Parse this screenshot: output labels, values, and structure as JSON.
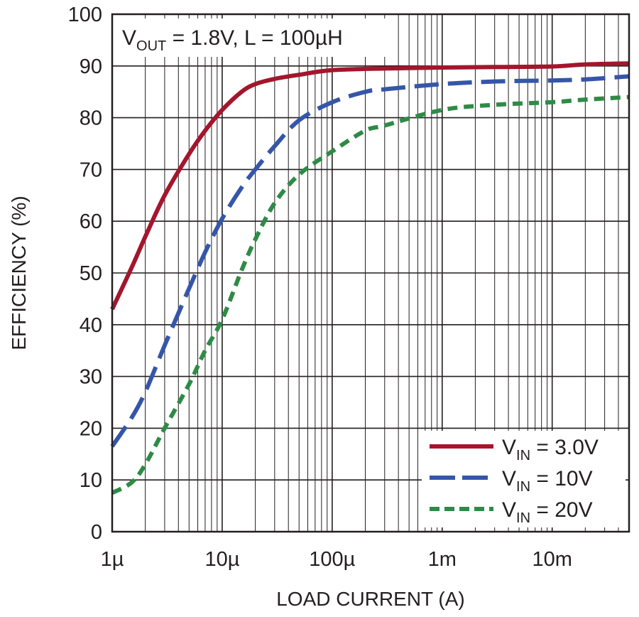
{
  "chart_data": {
    "type": "line",
    "title": "",
    "annotation": {
      "v": "V",
      "sub": "OUT",
      "rest": " = 1.8V, L = 100µH"
    },
    "xlabel": "LOAD CURRENT (A)",
    "ylabel": "EFFICIENCY (%)",
    "x_scale": "log",
    "xlim": [
      1e-06,
      0.05
    ],
    "ylim": [
      0,
      100
    ],
    "x_ticks": [
      {
        "value": 1e-06,
        "label": "1µ"
      },
      {
        "value": 1e-05,
        "label": "10µ"
      },
      {
        "value": 0.0001,
        "label": "100µ"
      },
      {
        "value": 0.001,
        "label": "1m"
      },
      {
        "value": 0.01,
        "label": "10m"
      }
    ],
    "y_ticks": [
      0,
      10,
      20,
      30,
      40,
      50,
      60,
      70,
      80,
      90,
      100
    ],
    "grid": true,
    "legend_position": "bottom-right",
    "series": [
      {
        "name": "3.0V",
        "legend_v": "V",
        "legend_sub": "IN",
        "legend_rest": " = 3.0V",
        "color": "#a3162d",
        "style": "solid",
        "x": [
          1e-06,
          1.5e-06,
          2e-06,
          3e-06,
          5e-06,
          7e-06,
          1e-05,
          1.5e-05,
          2e-05,
          3e-05,
          5e-05,
          0.0001,
          0.0003,
          0.001,
          0.003,
          0.01,
          0.02,
          0.05
        ],
        "y": [
          43,
          51,
          57,
          65,
          73,
          77.5,
          81.5,
          85,
          86.5,
          87.5,
          88.3,
          89.2,
          89.5,
          89.7,
          89.8,
          89.9,
          90.3,
          90.5
        ]
      },
      {
        "name": "10V",
        "legend_v": "V",
        "legend_sub": "IN",
        "legend_rest": " = 10V",
        "color": "#3556a8",
        "style": "long-dash",
        "x": [
          1e-06,
          1.5e-06,
          2e-06,
          3e-06,
          5e-06,
          7e-06,
          1e-05,
          1.5e-05,
          2e-05,
          3e-05,
          5e-05,
          0.0001,
          0.0002,
          0.0003,
          0.001,
          0.003,
          0.01,
          0.02,
          0.05
        ],
        "y": [
          16.5,
          22,
          27,
          36,
          47,
          54,
          60.5,
          66.5,
          70,
          74.5,
          79.5,
          83,
          85,
          85.5,
          86.5,
          87,
          87.2,
          87.4,
          88
        ]
      },
      {
        "name": "20V",
        "legend_v": "V",
        "legend_sub": "IN",
        "legend_rest": " = 20V",
        "color": "#2e8b46",
        "style": "short-dash",
        "x": [
          1e-06,
          1.5e-06,
          2e-06,
          3e-06,
          5e-06,
          7e-06,
          1e-05,
          1.5e-05,
          2e-05,
          3e-05,
          5e-05,
          0.0001,
          0.0002,
          0.0003,
          0.001,
          0.003,
          0.01,
          0.02,
          0.05
        ],
        "y": [
          7.5,
          9.5,
          13,
          20,
          28.5,
          35,
          41,
          50.5,
          56.5,
          63.5,
          69,
          73.5,
          77.5,
          78.5,
          81.5,
          82.5,
          83,
          83.5,
          84
        ]
      }
    ]
  }
}
